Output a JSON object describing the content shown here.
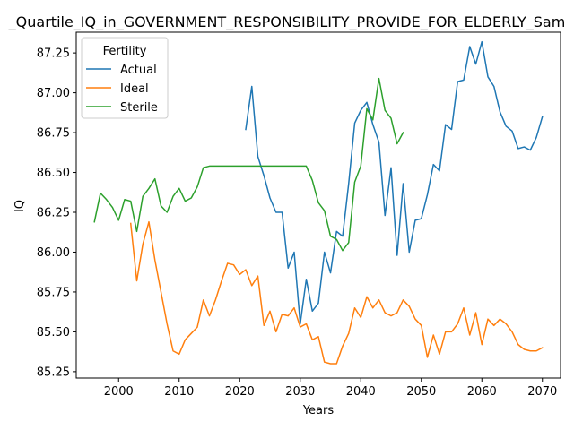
{
  "chart_data": {
    "type": "line",
    "title": "_Quartile_IQ_in_GOVERNMENT_RESPONSIBILITY_PROVIDE_FOR_ELDERLY_Sam",
    "xlabel": "Years",
    "ylabel": "IQ",
    "xlim": [
      1993,
      2073
    ],
    "ylim": [
      85.21,
      87.38
    ],
    "xticks": [
      2000,
      2010,
      2020,
      2030,
      2040,
      2050,
      2060,
      2070
    ],
    "yticks": [
      85.25,
      85.5,
      85.75,
      86.0,
      86.25,
      86.5,
      86.75,
      87.0,
      87.25
    ],
    "ytick_labels": [
      "85.25",
      "85.50",
      "85.75",
      "86.00",
      "86.25",
      "86.50",
      "86.75",
      "87.00",
      "87.25"
    ],
    "grid": false,
    "legend": {
      "title": "Fertility",
      "placement": "top-left"
    },
    "series": [
      {
        "name": "Actual",
        "color": "#1f77b4",
        "x": [
          2021,
          2022,
          2023,
          2024,
          2025,
          2026,
          2027,
          2028,
          2029,
          2030,
          2031,
          2032,
          2033,
          2034,
          2035,
          2036,
          2037,
          2038,
          2039,
          2040,
          2041,
          2042,
          2043,
          2044,
          2045,
          2046,
          2047,
          2048,
          2049,
          2050,
          2051,
          2052,
          2053,
          2054,
          2055,
          2056,
          2057,
          2058,
          2059,
          2060,
          2061,
          2062,
          2063,
          2064,
          2065,
          2066,
          2067,
          2068,
          2069,
          2070
        ],
        "y": [
          86.77,
          87.04,
          86.6,
          86.48,
          86.34,
          86.25,
          86.25,
          85.9,
          86.0,
          85.55,
          85.83,
          85.63,
          85.68,
          86.0,
          85.87,
          86.13,
          86.1,
          86.43,
          86.81,
          86.89,
          86.94,
          86.8,
          86.69,
          86.23,
          86.53,
          85.98,
          86.43,
          86.0,
          86.2,
          86.21,
          86.36,
          86.55,
          86.51,
          86.8,
          86.77,
          87.07,
          87.08,
          87.29,
          87.18,
          87.32,
          87.1,
          87.04,
          86.88,
          86.79,
          86.76,
          86.65,
          86.66,
          86.64,
          86.72,
          86.85
        ]
      },
      {
        "name": "Ideal",
        "color": "#ff7f0e",
        "x": [
          2002,
          2003,
          2004,
          2005,
          2006,
          2007,
          2008,
          2009,
          2010,
          2011,
          2012,
          2013,
          2014,
          2015,
          2016,
          2017,
          2018,
          2019,
          2020,
          2021,
          2022,
          2023,
          2024,
          2025,
          2026,
          2027,
          2028,
          2029,
          2030,
          2031,
          2032,
          2033,
          2034,
          2035,
          2036,
          2037,
          2038,
          2039,
          2040,
          2041,
          2042,
          2043,
          2044,
          2045,
          2046,
          2047,
          2048,
          2049,
          2050,
          2051,
          2052,
          2053,
          2054,
          2055,
          2056,
          2057,
          2058,
          2059,
          2060,
          2061,
          2062,
          2063,
          2064,
          2065,
          2066,
          2067,
          2068,
          2069,
          2070
        ],
        "y": [
          86.18,
          85.82,
          86.05,
          86.19,
          85.95,
          85.75,
          85.55,
          85.38,
          85.36,
          85.45,
          85.49,
          85.53,
          85.7,
          85.6,
          85.7,
          85.82,
          85.93,
          85.92,
          85.86,
          85.89,
          85.79,
          85.85,
          85.54,
          85.63,
          85.5,
          85.61,
          85.6,
          85.65,
          85.53,
          85.55,
          85.45,
          85.47,
          85.31,
          85.3,
          85.3,
          85.41,
          85.49,
          85.65,
          85.59,
          85.72,
          85.65,
          85.7,
          85.62,
          85.6,
          85.62,
          85.7,
          85.66,
          85.58,
          85.54,
          85.34,
          85.48,
          85.36,
          85.5,
          85.5,
          85.55,
          85.65,
          85.48,
          85.62,
          85.42,
          85.58,
          85.54,
          85.58,
          85.55,
          85.5,
          85.42,
          85.39,
          85.38,
          85.38,
          85.4
        ]
      },
      {
        "name": "Sterile",
        "color": "#2ca02c",
        "x": [
          1996,
          1997,
          1998,
          1999,
          2000,
          2001,
          2002,
          2003,
          2004,
          2005,
          2006,
          2007,
          2008,
          2009,
          2010,
          2011,
          2012,
          2013,
          2014,
          2015,
          2016,
          2017,
          2018,
          2019,
          2020,
          2021,
          2022,
          2023,
          2024,
          2025,
          2026,
          2027,
          2028,
          2029,
          2030,
          2031,
          2032,
          2033,
          2034,
          2035,
          2036,
          2037,
          2038,
          2039,
          2040,
          2041,
          2042,
          2043,
          2044,
          2045,
          2046,
          2047
        ],
        "y": [
          86.19,
          86.37,
          86.33,
          86.28,
          86.2,
          86.33,
          86.32,
          86.13,
          86.35,
          86.4,
          86.46,
          86.29,
          86.25,
          86.35,
          86.4,
          86.32,
          86.34,
          86.41,
          86.53,
          86.54,
          86.54,
          86.54,
          86.54,
          86.54,
          86.54,
          86.54,
          86.54,
          86.54,
          86.54,
          86.54,
          86.54,
          86.54,
          86.54,
          86.54,
          86.54,
          86.54,
          86.45,
          86.31,
          86.26,
          86.1,
          86.08,
          86.01,
          86.06,
          86.44,
          86.54,
          86.9,
          86.83,
          87.09,
          86.89,
          86.84,
          86.68,
          86.75
        ]
      }
    ]
  }
}
